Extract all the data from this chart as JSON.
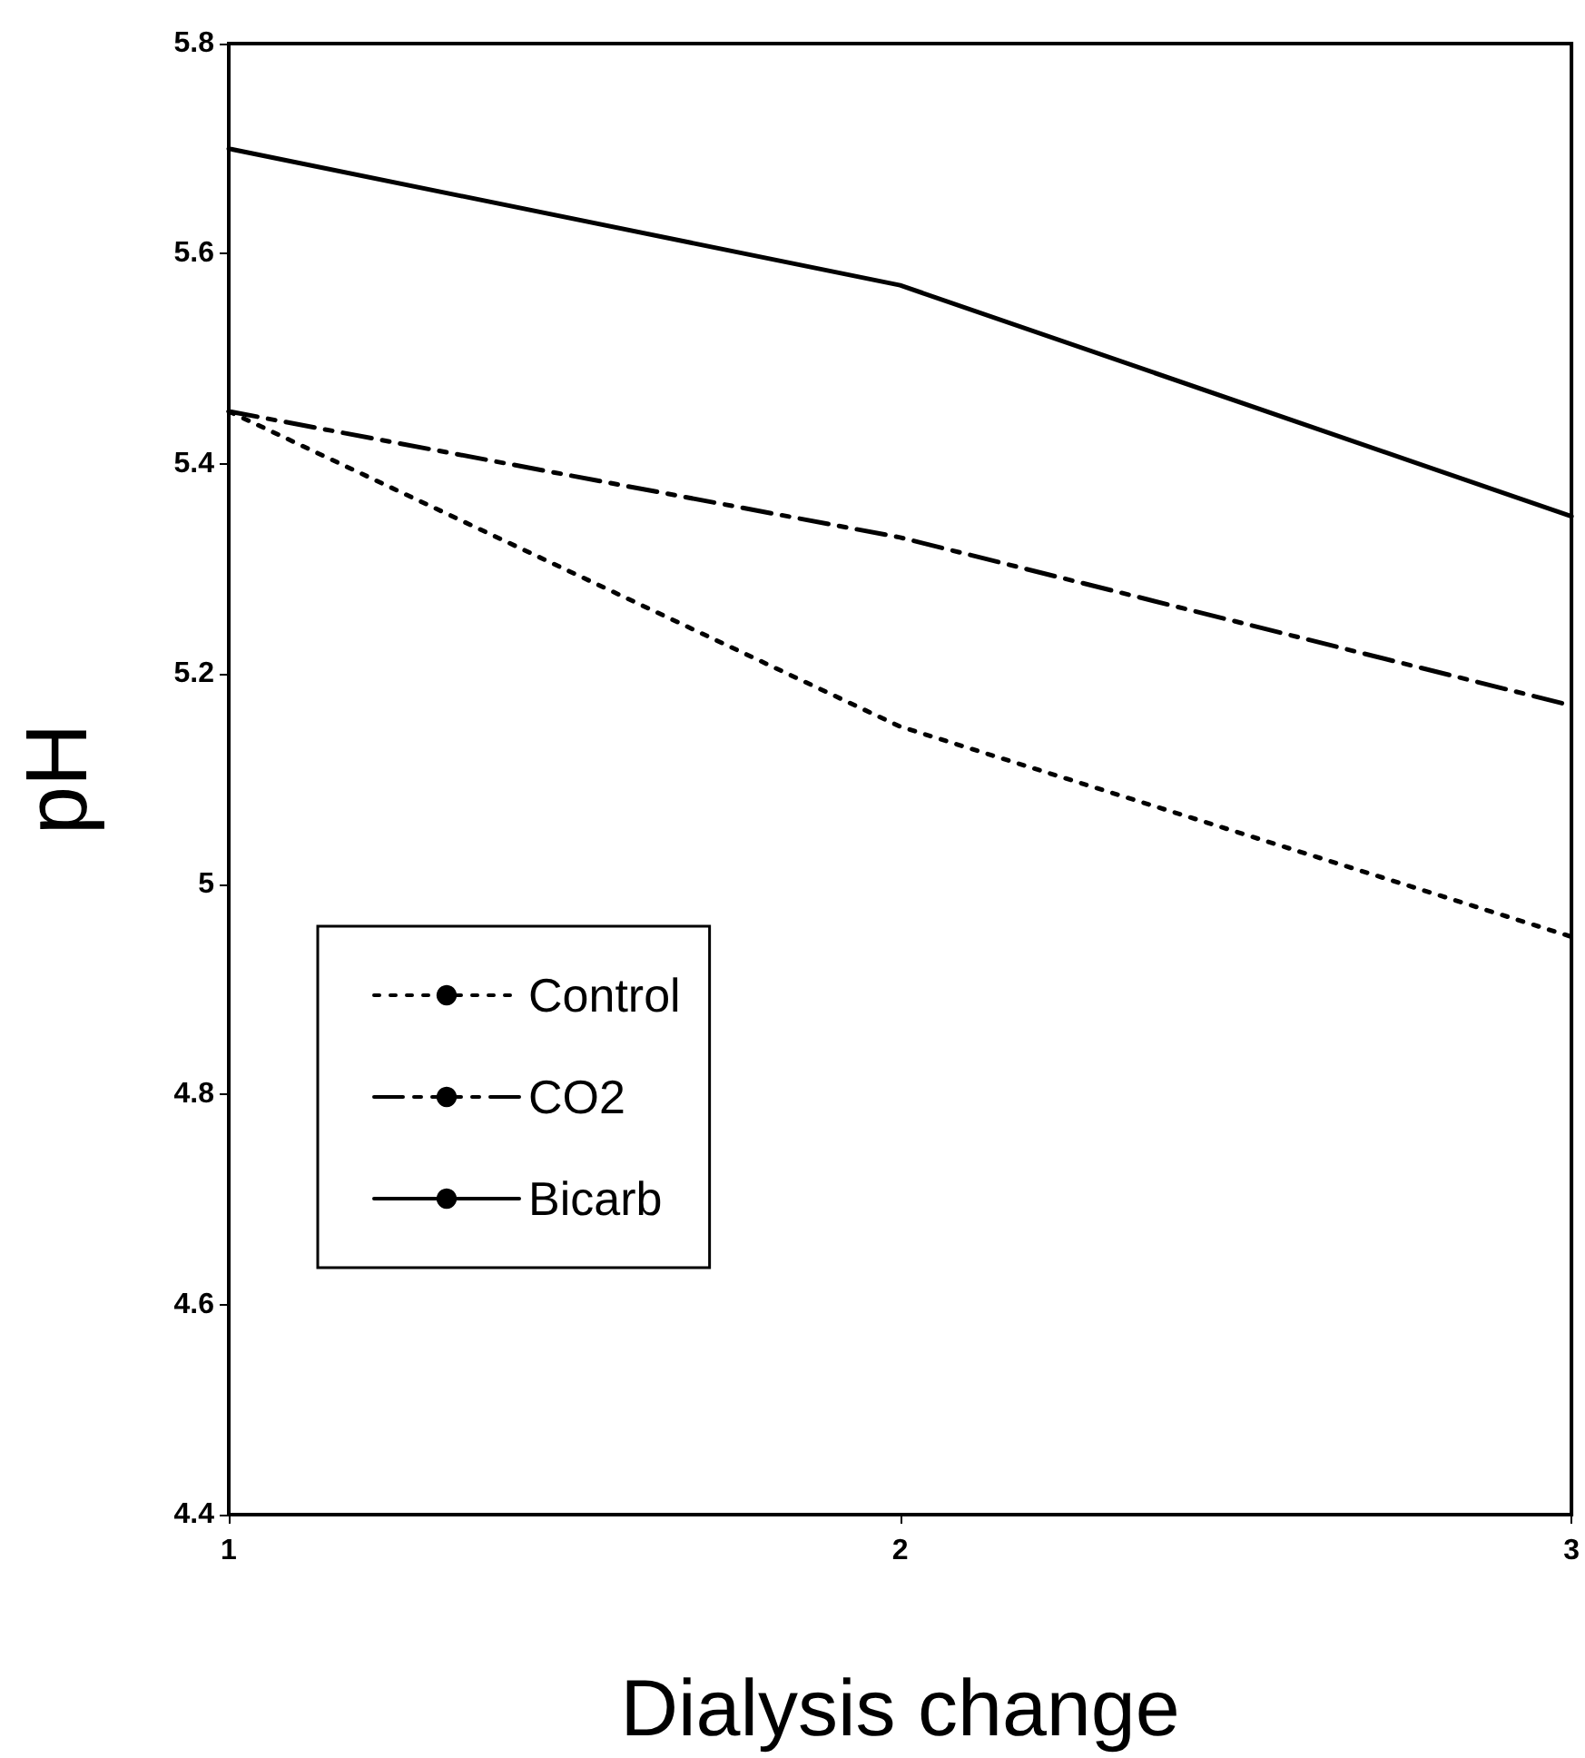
{
  "chart_data": {
    "type": "line",
    "xlabel": "Dialysis change",
    "ylabel": "pH",
    "x": [
      1,
      2,
      3
    ],
    "xlim": [
      1,
      3
    ],
    "xticks": [
      1,
      2,
      3
    ],
    "ylim": [
      4.4,
      5.8
    ],
    "yticks": [
      4.4,
      4.6,
      4.8,
      5,
      5.2,
      5.4,
      5.6,
      5.8
    ],
    "grid": false,
    "legend": "bottom left",
    "marker": "none",
    "series": [
      {
        "name": "Control",
        "color": "#000000",
        "line_style": "dotted",
        "values": [
          5.45,
          5.15,
          4.95
        ]
      },
      {
        "name": "CO2",
        "color": "#000000",
        "line_style": "dashed",
        "values": [
          5.45,
          5.33,
          5.17
        ]
      },
      {
        "name": "Bicarb",
        "color": "#000000",
        "line_style": "solid",
        "values": [
          5.7,
          5.57,
          5.35
        ]
      }
    ]
  }
}
